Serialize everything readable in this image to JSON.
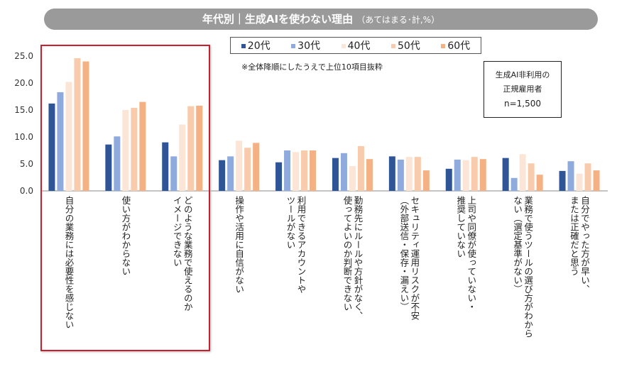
{
  "title": {
    "main": "年代別｜生成AIを使わない理由",
    "sub": "（あてはまる･計,%）"
  },
  "note": "※全体降順にしたうえで上位10項目抜粋",
  "sample_box": {
    "line1": "生成AI非利用の",
    "line2": "正規雇用者",
    "line3": "n=1,500"
  },
  "chart_data": {
    "type": "bar",
    "title": "年代別｜生成AIを使わない理由（あてはまる･計,%）",
    "ylim": [
      0,
      25
    ],
    "yticks": [
      "0.0",
      "5.0",
      "10.0",
      "15.0",
      "20.0",
      "25.0"
    ],
    "grid": false,
    "legend_placement": "top",
    "categories": [
      "自分の業務には必要性を感じない",
      "使い方がわからない",
      "どのような業務で使えるのか\nイメージできない",
      "操作や活用に自信がない",
      "利用できるアカウントや\nツールがない",
      "勤務先にルールや方針がなく、\n使ってよいのか判断できない",
      "セキュリティ運用リスクが不安\n（外部送信・保存・漏えい）",
      "上司や同僚が使っていない・\n推奨していない",
      "業務で使うツールの選び方がわから\nない（選定基準がない）",
      "自分でやった方が早い、\nまたは正確だと思う"
    ],
    "highlighted_categories": [
      0,
      1,
      2
    ],
    "highlight_color": "#c8202e",
    "series": [
      {
        "name": "20代",
        "color": "#2f5597",
        "values": [
          16.2,
          8.6,
          9.0,
          5.7,
          5.3,
          6.1,
          6.4,
          4.1,
          6.1,
          3.7
        ]
      },
      {
        "name": "30代",
        "color": "#8faadc",
        "values": [
          18.3,
          10.1,
          6.4,
          6.4,
          7.5,
          7.0,
          5.8,
          5.8,
          2.4,
          5.5
        ]
      },
      {
        "name": "40代",
        "color": "#fbe5d6",
        "values": [
          20.2,
          15.0,
          12.3,
          9.3,
          7.2,
          4.6,
          6.3,
          5.7,
          6.8,
          3.2
        ]
      },
      {
        "name": "50代",
        "color": "#f8cbad",
        "values": [
          24.6,
          15.4,
          15.7,
          8.0,
          7.5,
          8.3,
          6.3,
          6.3,
          5.1,
          5.1
        ]
      },
      {
        "name": "60代",
        "color": "#f4b183",
        "values": [
          24.0,
          16.5,
          15.8,
          8.9,
          7.5,
          5.9,
          3.8,
          5.9,
          3.0,
          3.8
        ]
      }
    ]
  }
}
